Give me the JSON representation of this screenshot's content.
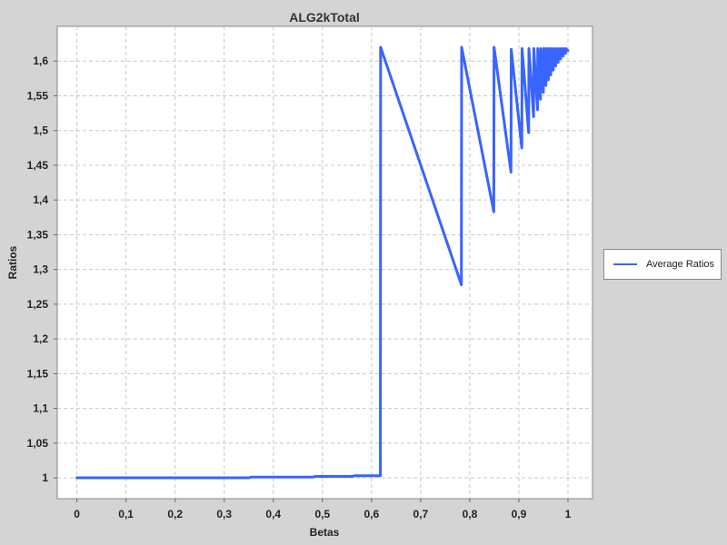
{
  "chart_data": {
    "type": "line",
    "title": "ALG2kTotal",
    "xlabel": "Betas",
    "ylabel": "Ratios",
    "xlim": [
      -0.04,
      1.05
    ],
    "ylim": [
      0.97,
      1.65
    ],
    "x_ticks": [
      0,
      0.1,
      0.2,
      0.3,
      0.4,
      0.5,
      0.6,
      0.7,
      0.8,
      0.9,
      1.0
    ],
    "x_tick_labels": [
      "0",
      "0,1",
      "0,2",
      "0,3",
      "0,4",
      "0,5",
      "0,6",
      "0,7",
      "0,8",
      "0,9",
      "1"
    ],
    "y_ticks": [
      1.0,
      1.05,
      1.1,
      1.15,
      1.2,
      1.25,
      1.3,
      1.35,
      1.4,
      1.45,
      1.5,
      1.55,
      1.6
    ],
    "y_tick_labels": [
      "1",
      "1,05",
      "1,1",
      "1,15",
      "1,2",
      "1,25",
      "1,3",
      "1,35",
      "1,4",
      "1,45",
      "1,5",
      "1,55",
      "1,6"
    ],
    "grid": true,
    "legend_position": "right",
    "series": [
      {
        "name": "Average Ratios",
        "color": "#3864ff",
        "x": [
          0,
          0.35,
          0.355,
          0.48,
          0.485,
          0.56,
          0.565,
          0.618,
          0.6185,
          0.783,
          0.7835,
          0.849,
          0.8495,
          0.884,
          0.8845,
          0.906,
          0.9065,
          0.92,
          0.9205,
          0.93,
          0.9305,
          0.938,
          0.9385,
          0.944,
          0.9445,
          0.95,
          0.9505,
          0.955,
          0.9555,
          0.96,
          0.9605,
          0.965,
          0.9655,
          0.97,
          0.9705,
          0.975,
          0.9755,
          0.98,
          0.9805,
          0.985,
          0.9855,
          0.99,
          0.9905,
          0.995,
          0.9955,
          1.0
        ],
        "y": [
          1.0,
          1.0,
          1.001,
          1.001,
          1.002,
          1.002,
          1.003,
          1.003,
          1.62,
          1.278,
          1.62,
          1.383,
          1.62,
          1.44,
          1.617,
          1.475,
          1.618,
          1.497,
          1.618,
          1.52,
          1.618,
          1.53,
          1.618,
          1.545,
          1.618,
          1.555,
          1.618,
          1.565,
          1.618,
          1.573,
          1.618,
          1.58,
          1.618,
          1.587,
          1.618,
          1.593,
          1.618,
          1.598,
          1.618,
          1.603,
          1.618,
          1.607,
          1.618,
          1.611,
          1.618,
          1.615
        ]
      }
    ]
  }
}
